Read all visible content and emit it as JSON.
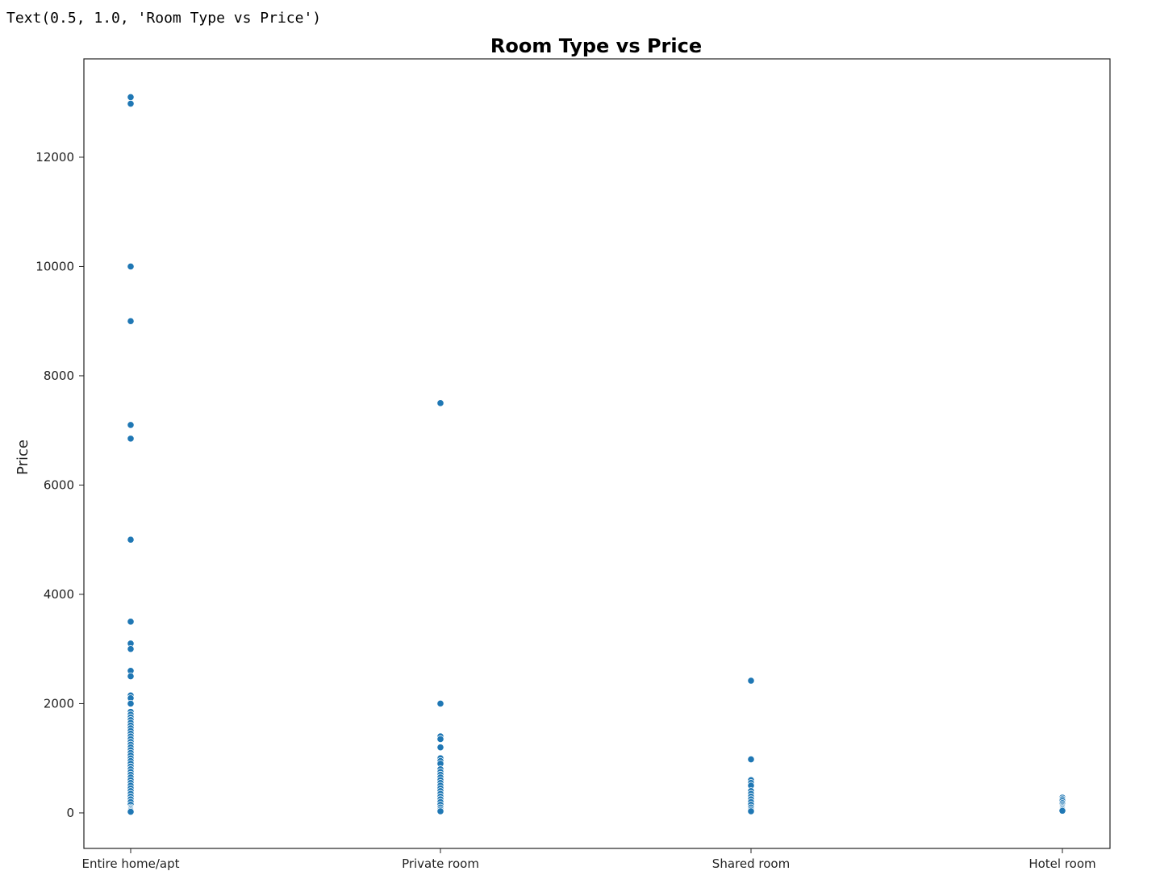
{
  "output_text": "Text(0.5, 1.0, 'Room Type vs Price')",
  "chart_data": {
    "type": "scatter",
    "title": "Room Type vs Price",
    "xlabel": "",
    "ylabel": "Price",
    "categories": [
      "Entire home/apt",
      "Private room",
      "Shared room",
      "Hotel room"
    ],
    "ylim": [
      -650,
      13800
    ],
    "yticks": [
      0,
      2000,
      4000,
      6000,
      8000,
      10000,
      12000
    ],
    "grid": false,
    "point_color": "#1f77b4",
    "point_edge_color": "#ffffff",
    "points": [
      {
        "category": "Entire home/apt",
        "values": [
          13100,
          12980,
          10000,
          9000,
          7100,
          6850,
          5000,
          3500,
          3100,
          3000,
          2600,
          2500,
          2150,
          2100,
          2000,
          1850,
          1800,
          1750,
          1700,
          1650,
          1600,
          1550,
          1500,
          1450,
          1400,
          1350,
          1300,
          1250,
          1200,
          1150,
          1100,
          1050,
          1000,
          950,
          900,
          850,
          800,
          750,
          700,
          650,
          600,
          550,
          500,
          450,
          400,
          350,
          300,
          250,
          200,
          150,
          100,
          80,
          60,
          40,
          20
        ]
      },
      {
        "category": "Private room",
        "values": [
          7500,
          2000,
          1400,
          1350,
          1200,
          1000,
          950,
          900,
          800,
          750,
          700,
          650,
          600,
          550,
          500,
          450,
          400,
          350,
          300,
          250,
          200,
          150,
          100,
          60,
          30
        ]
      },
      {
        "category": "Shared room",
        "values": [
          2420,
          980,
          600,
          550,
          500,
          400,
          350,
          300,
          250,
          200,
          150,
          100,
          60,
          30
        ]
      },
      {
        "category": "Hotel room",
        "values": [
          280,
          250,
          220,
          180,
          150,
          120,
          100,
          80,
          60,
          40
        ]
      }
    ]
  }
}
